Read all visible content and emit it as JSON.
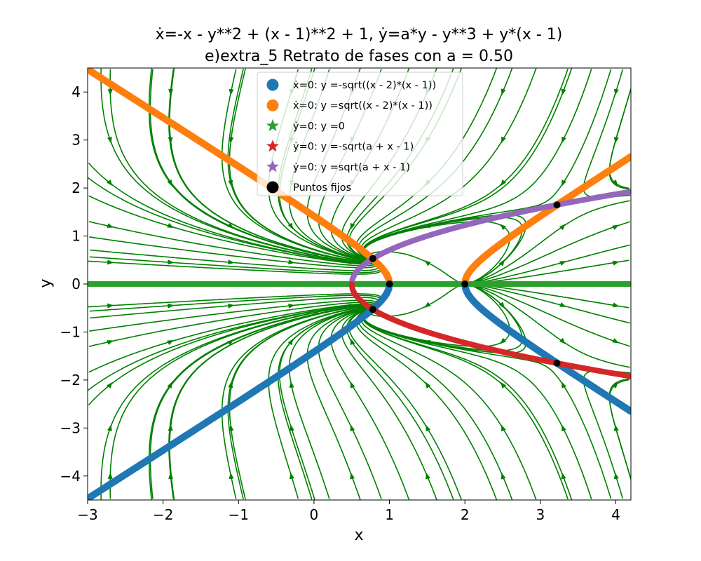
{
  "chart_data": {
    "type": "line",
    "title_line1": "ẋ=-x - y**2 + (x - 1)**2 + 1, ẏ=a*y - y**3 + y*(x - 1)",
    "title_line2": "e)extra_5 Retrato de fases con a = 0.50",
    "xlabel": "x",
    "ylabel": "y",
    "xlim": [
      -3,
      4.2
    ],
    "ylim": [
      -4.5,
      4.5
    ],
    "xticks": [
      -3,
      -2,
      -1,
      0,
      1,
      2,
      3,
      4
    ],
    "yticks": [
      -4,
      -3,
      -2,
      -1,
      0,
      1,
      2,
      3,
      4
    ],
    "xtick_labels": [
      "−3",
      "−2",
      "−1",
      "0",
      "1",
      "2",
      "3",
      "4"
    ],
    "ytick_labels": [
      "−4",
      "−3",
      "−2",
      "−1",
      "0",
      "1",
      "2",
      "3",
      "4"
    ],
    "a": 0.5,
    "legend_position": "upper-center",
    "series": [
      {
        "name": "x_null_neg",
        "label": "ẋ=0: y =-sqrt((x - 2)*(x - 1))",
        "color": "#1f77b4",
        "marker": "circle",
        "equation": "y = -sqrt((x-2)*(x-1))"
      },
      {
        "name": "x_null_pos",
        "label": "ẋ=0: y =sqrt((x - 2)*(x - 1))",
        "color": "#ff7f0e",
        "marker": "circle",
        "equation": "y = sqrt((x-2)*(x-1))"
      },
      {
        "name": "y_null_zero",
        "label": "ẏ=0: y =0",
        "color": "#2ca02c",
        "marker": "star",
        "equation": "y = 0"
      },
      {
        "name": "y_null_neg",
        "label": "ẏ=0: y =-sqrt(a + x - 1)",
        "color": "#d62728",
        "marker": "star",
        "equation": "y = -sqrt(a + x - 1)"
      },
      {
        "name": "y_null_pos",
        "label": "ẏ=0: y =sqrt(a + x - 1)",
        "color": "#9467bd",
        "marker": "star",
        "equation": "y = sqrt(a + x - 1)"
      }
    ],
    "fixed_points_label": "Puntos fijos",
    "fixed_points": [
      {
        "x": 1.0,
        "y": 0.0
      },
      {
        "x": 2.0,
        "y": 0.0
      },
      {
        "x": 0.78,
        "y": 0.53
      },
      {
        "x": 0.78,
        "y": -0.53
      },
      {
        "x": 3.22,
        "y": 1.65
      },
      {
        "x": 3.22,
        "y": -1.65
      }
    ],
    "streamline_color": "#008000"
  }
}
